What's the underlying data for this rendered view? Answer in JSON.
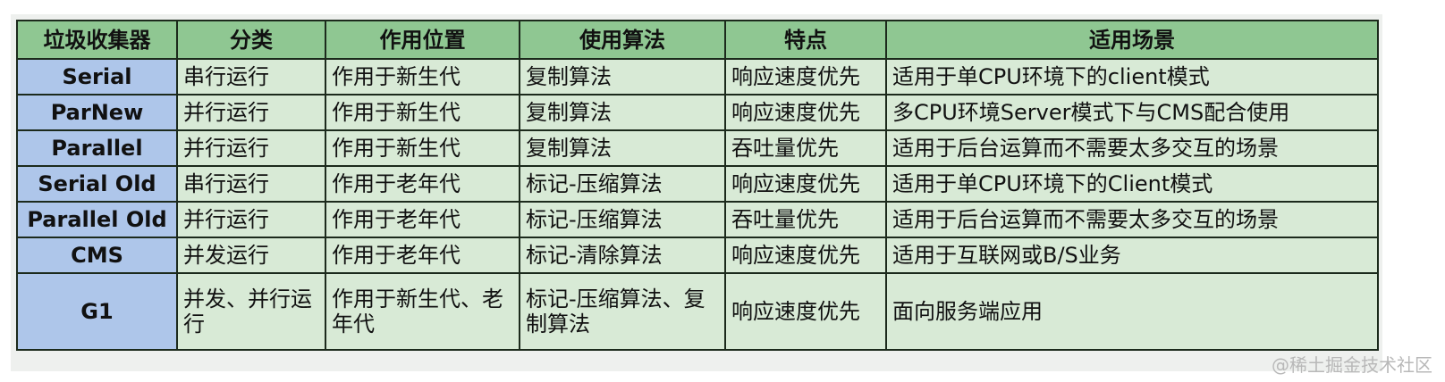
{
  "table": {
    "headers": [
      "垃圾收集器",
      "分类",
      "作用位置",
      "使用算法",
      "特点",
      "适用场景"
    ],
    "rows": [
      [
        "Serial",
        "串行运行",
        "作用于新生代",
        "复制算法",
        "响应速度优先",
        "适用于单CPU环境下的client模式"
      ],
      [
        "ParNew",
        "并行运行",
        "作用于新生代",
        "复制算法",
        "响应速度优先",
        "多CPU环境Server模式下与CMS配合使用"
      ],
      [
        "Parallel",
        "并行运行",
        "作用于新生代",
        "复制算法",
        "吞吐量优先",
        "适用于后台运算而不需要太多交互的场景"
      ],
      [
        "Serial Old",
        "串行运行",
        "作用于老年代",
        "标记-压缩算法",
        "响应速度优先",
        "适用于单CPU环境下的Client模式"
      ],
      [
        "Parallel Old",
        "并行运行",
        "作用于老年代",
        "标记-压缩算法",
        "吞吐量优先",
        "适用于后台运算而不需要太多交互的场景"
      ],
      [
        "CMS",
        "并发运行",
        "作用于老年代",
        "标记-清除算法",
        "响应速度优先",
        "适用于互联网或B/S业务"
      ],
      [
        "G1",
        "并发、并行运行",
        "作用于新生代、老年代",
        "标记-压缩算法、复制算法",
        "响应速度优先",
        "面向服务端应用"
      ]
    ]
  },
  "watermark": "@稀土掘金技术社区",
  "colors": {
    "header": "#8fc792",
    "name_column": "#aec6ea",
    "cell": "#d8ead6"
  }
}
